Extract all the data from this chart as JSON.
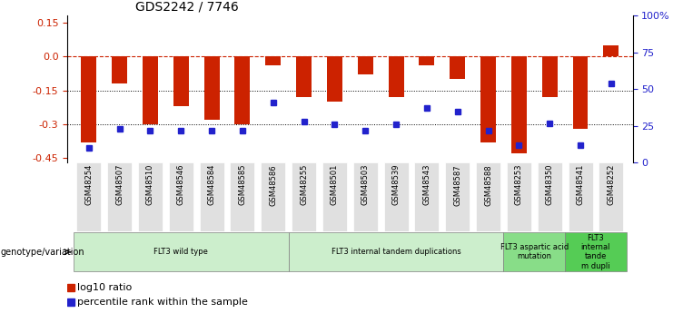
{
  "title": "GDS2242 / 7746",
  "samples": [
    "GSM48254",
    "GSM48507",
    "GSM48510",
    "GSM48546",
    "GSM48584",
    "GSM48585",
    "GSM48586",
    "GSM48255",
    "GSM48501",
    "GSM48503",
    "GSM48539",
    "GSM48543",
    "GSM48587",
    "GSM48588",
    "GSM48253",
    "GSM48350",
    "GSM48541",
    "GSM48252"
  ],
  "log10_ratio": [
    -0.38,
    -0.12,
    -0.3,
    -0.22,
    -0.28,
    -0.3,
    -0.04,
    -0.18,
    -0.2,
    -0.08,
    -0.18,
    -0.04,
    -0.1,
    -0.38,
    -0.43,
    -0.18,
    -0.32,
    0.05
  ],
  "percentile_rank": [
    10,
    23,
    22,
    22,
    22,
    22,
    41,
    28,
    26,
    22,
    26,
    37,
    35,
    22,
    12,
    27,
    12,
    54
  ],
  "groups": [
    {
      "label": "FLT3 wild type",
      "start": 0,
      "end": 7,
      "color": "#cceecc"
    },
    {
      "label": "FLT3 internal tandem duplications",
      "start": 7,
      "end": 14,
      "color": "#cceecc"
    },
    {
      "label": "FLT3 aspartic acid\nmutation",
      "start": 14,
      "end": 16,
      "color": "#88dd88"
    },
    {
      "label": "FLT3\ninternal\ntande\nm dupli",
      "start": 16,
      "end": 18,
      "color": "#55cc55"
    }
  ],
  "ylim_left": [
    -0.47,
    0.18
  ],
  "yticks_left": [
    -0.45,
    -0.3,
    -0.15,
    0.0,
    0.15
  ],
  "yticks_right": [
    0,
    25,
    50,
    75,
    100
  ],
  "bar_color": "#cc2200",
  "dot_color": "#2222cc",
  "legend_items": [
    {
      "label": "log10 ratio",
      "color": "#cc2200"
    },
    {
      "label": "percentile rank within the sample",
      "color": "#2222cc"
    }
  ]
}
